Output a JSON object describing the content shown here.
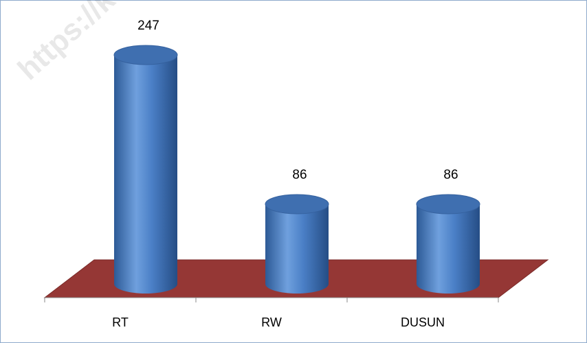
{
  "chart_data": {
    "type": "bar3d",
    "categories": [
      "RT",
      "RW",
      "DUSUN"
    ],
    "values": [
      247,
      86,
      86
    ],
    "color": "#4f81bd",
    "floor_color": "#953735",
    "watermark": "https://kebumenka"
  }
}
